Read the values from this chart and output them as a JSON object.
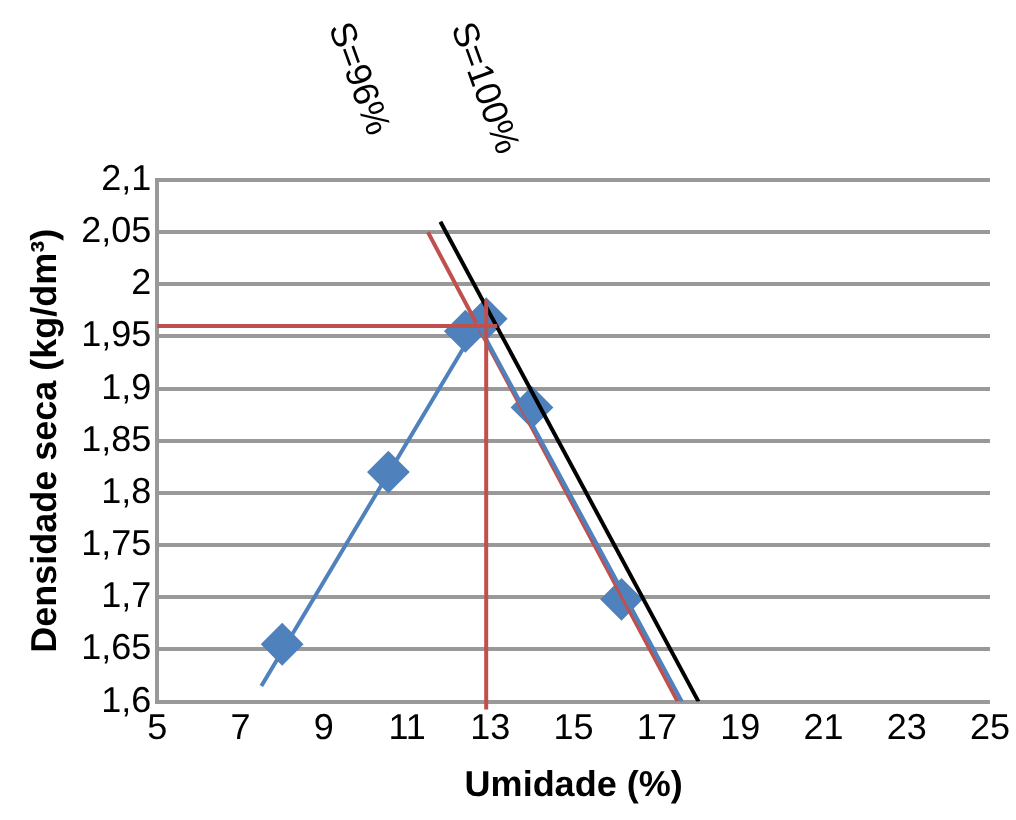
{
  "chart_data": {
    "type": "scatter",
    "xlabel": "Umidade (%)",
    "ylabel": "Densidade seca (kg/dm³)",
    "xlim": [
      5,
      25
    ],
    "xticks": [
      5,
      7,
      9,
      11,
      13,
      15,
      17,
      19,
      21,
      23,
      25
    ],
    "ylim": [
      1.6,
      2.1
    ],
    "yticks": [
      {
        "value": 1.6,
        "label": "1,6"
      },
      {
        "value": 1.65,
        "label": "1,65"
      },
      {
        "value": 1.7,
        "label": "1,7"
      },
      {
        "value": 1.75,
        "label": "1,75"
      },
      {
        "value": 1.8,
        "label": "1,8"
      },
      {
        "value": 1.85,
        "label": "1,85"
      },
      {
        "value": 1.9,
        "label": "1,9"
      },
      {
        "value": 1.95,
        "label": "1,95"
      },
      {
        "value": 2.0,
        "label": "2"
      },
      {
        "value": 2.05,
        "label": "2,05"
      },
      {
        "value": 2.1,
        "label": "2,1"
      }
    ],
    "grid": "y",
    "legend": false,
    "series": [
      {
        "type": "line",
        "color": "#4f81bd",
        "x": [
          7.5,
          12.7,
          17.6
        ],
        "values": [
          1.615,
          1.962,
          1.6
        ]
      },
      {
        "type": "line",
        "name": "S=96%",
        "color": "#c0504d",
        "x": [
          11.5,
          17.5
        ],
        "values": [
          2.05,
          1.6
        ]
      },
      {
        "type": "line",
        "name": "S=100%",
        "color": "#000000",
        "x": [
          11.8,
          18.0
        ],
        "values": [
          2.06,
          1.6
        ]
      },
      {
        "marker": "diamond",
        "color": "#4f81bd",
        "x": [
          8.0,
          10.55,
          12.4,
          12.9,
          14.0,
          16.15
        ],
        "values": [
          1.655,
          1.82,
          1.955,
          1.967,
          1.882,
          1.698
        ]
      }
    ],
    "ref_lines": [
      {
        "axis": "y",
        "value": 1.96,
        "color": "#c0504d"
      },
      {
        "axis": "x",
        "value": 12.9,
        "color": "#c0504d"
      }
    ]
  }
}
